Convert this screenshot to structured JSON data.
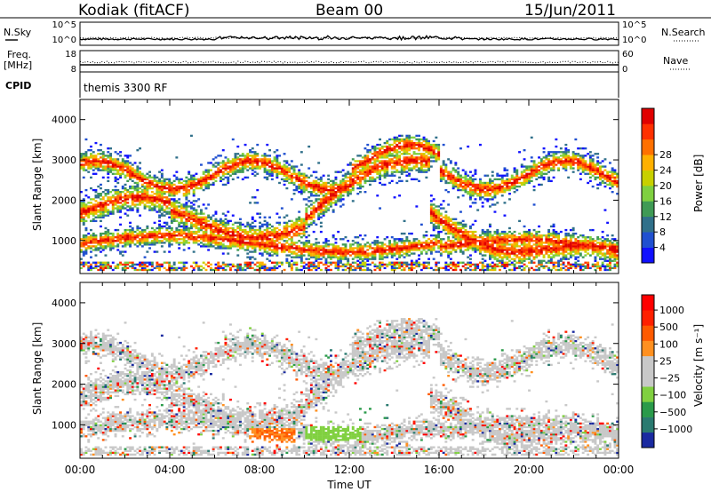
{
  "header": {
    "station": "Kodiak (fitACF)",
    "beam": "Beam 00",
    "date": "15/Jun/2011"
  },
  "left_labels": {
    "nsky": "N.Sky",
    "freq": "Freq.",
    "freq_unit": "[MHz]",
    "cpid": "CPID"
  },
  "right_labels": {
    "nsearch": "N.Search",
    "nave": "Nave"
  },
  "cpid_text": "themis 3300 RF",
  "chart_data": [
    {
      "type": "line",
      "name": "noise",
      "left_ticks": [
        "10^5",
        "10^0"
      ],
      "right_ticks": [
        "10^5",
        "10^0"
      ]
    },
    {
      "type": "line",
      "name": "frequency",
      "left_ticks": [
        "18",
        "8"
      ],
      "right_ticks": [
        "60",
        "0"
      ]
    },
    {
      "type": "heatmap",
      "name": "power",
      "ylabel": "Slant Range [km]",
      "ylim": [
        180,
        4500
      ],
      "yticks": [
        "1000",
        "2000",
        "3000",
        "4000"
      ],
      "xlim": [
        0,
        24
      ],
      "colorbar": {
        "label": "Power [dB]",
        "ticks": [
          "4",
          "8",
          "12",
          "16",
          "20",
          "24",
          "28"
        ],
        "colors": [
          "#1010ff",
          "#2050d0",
          "#30708a",
          "#3f9a55",
          "#7fd040",
          "#c8d000",
          "#ffb000",
          "#ff7000",
          "#ff3000",
          "#e00000"
        ]
      },
      "features": [
        {
          "range_km": [
            1300,
            1900
          ],
          "t_hours": [
            0,
            10
          ]
        },
        {
          "range_km": [
            2000,
            3100
          ],
          "t_hours": [
            10,
            15.5
          ]
        },
        {
          "range_km": [
            700,
            1200
          ],
          "t_hours": [
            7.5,
            9.5
          ]
        }
      ]
    },
    {
      "type": "heatmap",
      "name": "velocity",
      "ylabel": "Slant Range [km]",
      "ylim": [
        180,
        4500
      ],
      "yticks": [
        "1000",
        "2000",
        "3000",
        "4000"
      ],
      "xlabel": "Time UT",
      "xticks": [
        "00:00",
        "04:00",
        "08:00",
        "12:00",
        "16:00",
        "20:00",
        "00:00"
      ],
      "xlim": [
        0,
        24
      ],
      "colorbar": {
        "label": "Velocity [m s⁻¹]",
        "ticks": [
          "1000",
          "500",
          "100",
          "25",
          "−25",
          "−100",
          "−500",
          "−1000"
        ],
        "colors": [
          "#1a2aa0",
          "#2a7a70",
          "#2a9a4a",
          "#80d040",
          "#c8c8c8",
          "#c8c8c8",
          "#ff9020",
          "#ff5a00",
          "#ff2000",
          "#ff0000"
        ]
      }
    }
  ]
}
